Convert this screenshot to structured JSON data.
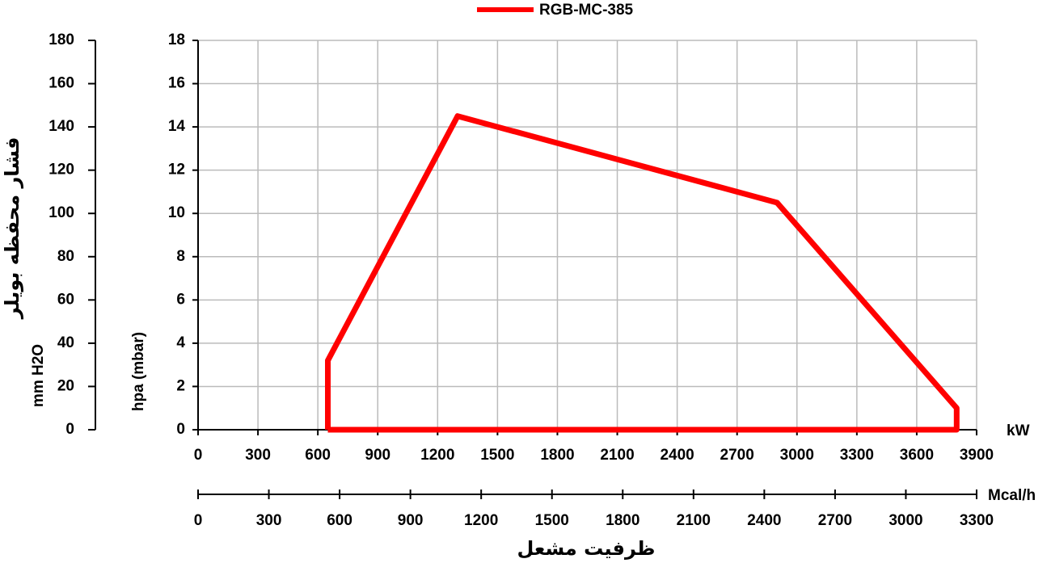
{
  "chart_data": {
    "type": "line",
    "title": "RGB-MC-385",
    "x": [
      650,
      650,
      1300,
      2900,
      3800,
      3800,
      650
    ],
    "series": [
      {
        "name": "RGB-MC-385",
        "color": "#ff0000",
        "values": [
          0,
          3.2,
          14.5,
          10.5,
          1,
          0,
          0
        ]
      }
    ],
    "xlim": [
      0,
      3900
    ],
    "xticks": [
      0,
      300,
      600,
      900,
      1200,
      1500,
      1800,
      2100,
      2400,
      2700,
      3000,
      3300,
      3600,
      3900
    ],
    "xunit": "kW",
    "x2lim": [
      0,
      3300
    ],
    "x2ticks": [
      0,
      300,
      600,
      900,
      1200,
      1500,
      1800,
      2100,
      2400,
      2700,
      3000,
      3300
    ],
    "x2unit": "Mcal/h",
    "xlabel": "ظرفیت مشعل",
    "ylim": [
      0,
      18
    ],
    "yticks": [
      0,
      2,
      4,
      6,
      8,
      10,
      12,
      14,
      16,
      18
    ],
    "ylabel": "hpa (mbar)",
    "y2lim": [
      0,
      180
    ],
    "y2ticks": [
      0,
      20,
      40,
      60,
      80,
      100,
      120,
      140,
      160,
      180
    ],
    "y2label": "فشار محفظه بویلر",
    "y2unit": "mm H2O",
    "grid": true
  }
}
